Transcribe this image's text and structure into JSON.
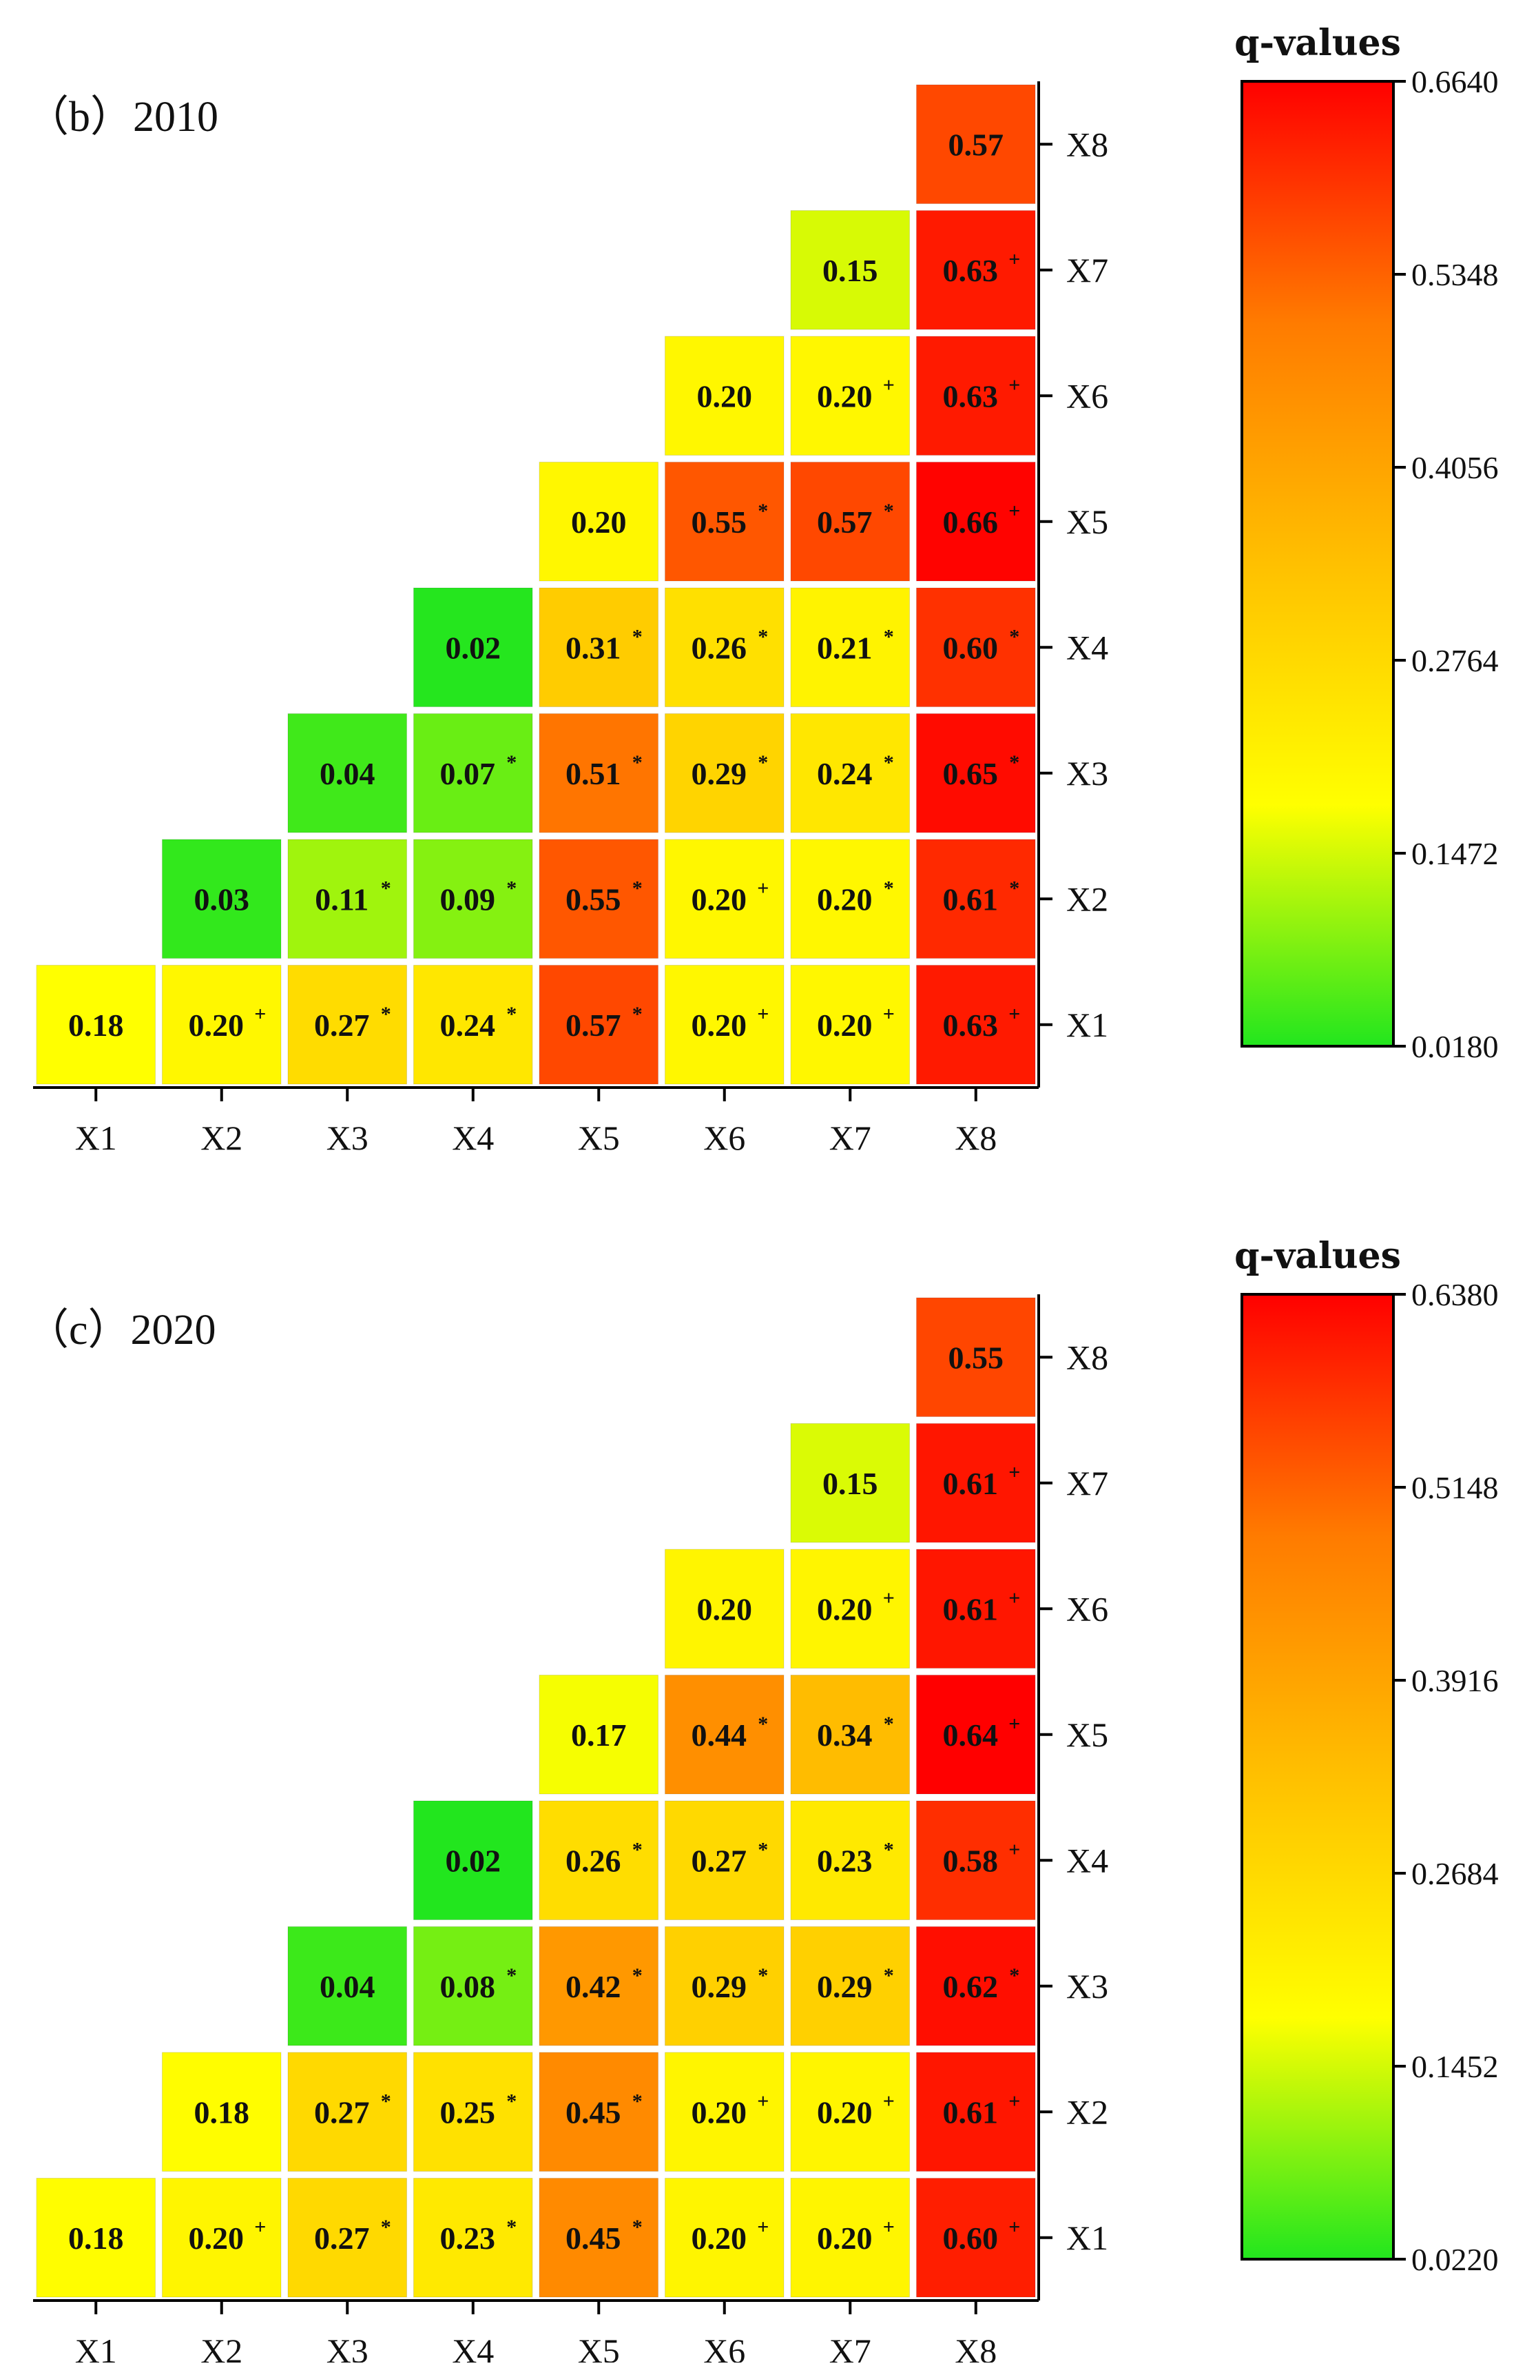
{
  "chart_data": [
    {
      "type": "heatmap",
      "title": "（b）2010",
      "panel_letter": "b",
      "year": "2010",
      "categories": [
        "X1",
        "X2",
        "X3",
        "X4",
        "X5",
        "X6",
        "X7",
        "X8"
      ],
      "colorbar": {
        "title": "q-values",
        "min": 0.018,
        "max": 0.664,
        "ticks": [
          "0.6640",
          "0.5348",
          "0.4056",
          "0.2764",
          "0.1472",
          "0.0180"
        ],
        "colors": [
          "#22e61e",
          "#ffff00",
          "#ffc000",
          "#ff7b00",
          "#ff0000"
        ]
      },
      "cells": [
        {
          "row": "X1",
          "col": "X1",
          "value": "0.18",
          "sym": ""
        },
        {
          "row": "X1",
          "col": "X2",
          "value": "0.20",
          "sym": "+"
        },
        {
          "row": "X1",
          "col": "X3",
          "value": "0.27",
          "sym": "*"
        },
        {
          "row": "X1",
          "col": "X4",
          "value": "0.24",
          "sym": "*"
        },
        {
          "row": "X1",
          "col": "X5",
          "value": "0.57",
          "sym": "*"
        },
        {
          "row": "X1",
          "col": "X6",
          "value": "0.20",
          "sym": "+"
        },
        {
          "row": "X1",
          "col": "X7",
          "value": "0.20",
          "sym": "+"
        },
        {
          "row": "X1",
          "col": "X8",
          "value": "0.63",
          "sym": "+"
        },
        {
          "row": "X2",
          "col": "X2",
          "value": "0.03",
          "sym": ""
        },
        {
          "row": "X2",
          "col": "X3",
          "value": "0.11",
          "sym": "*"
        },
        {
          "row": "X2",
          "col": "X4",
          "value": "0.09",
          "sym": "*"
        },
        {
          "row": "X2",
          "col": "X5",
          "value": "0.55",
          "sym": "*"
        },
        {
          "row": "X2",
          "col": "X6",
          "value": "0.20",
          "sym": "+"
        },
        {
          "row": "X2",
          "col": "X7",
          "value": "0.20",
          "sym": "*"
        },
        {
          "row": "X2",
          "col": "X8",
          "value": "0.61",
          "sym": "*"
        },
        {
          "row": "X3",
          "col": "X3",
          "value": "0.04",
          "sym": ""
        },
        {
          "row": "X3",
          "col": "X4",
          "value": "0.07",
          "sym": "*"
        },
        {
          "row": "X3",
          "col": "X5",
          "value": "0.51",
          "sym": "*"
        },
        {
          "row": "X3",
          "col": "X6",
          "value": "0.29",
          "sym": "*"
        },
        {
          "row": "X3",
          "col": "X7",
          "value": "0.24",
          "sym": "*"
        },
        {
          "row": "X3",
          "col": "X8",
          "value": "0.65",
          "sym": "*"
        },
        {
          "row": "X4",
          "col": "X4",
          "value": "0.02",
          "sym": ""
        },
        {
          "row": "X4",
          "col": "X5",
          "value": "0.31",
          "sym": "*"
        },
        {
          "row": "X4",
          "col": "X6",
          "value": "0.26",
          "sym": "*"
        },
        {
          "row": "X4",
          "col": "X7",
          "value": "0.21",
          "sym": "*"
        },
        {
          "row": "X4",
          "col": "X8",
          "value": "0.60",
          "sym": "*"
        },
        {
          "row": "X5",
          "col": "X5",
          "value": "0.20",
          "sym": ""
        },
        {
          "row": "X5",
          "col": "X6",
          "value": "0.55",
          "sym": "*"
        },
        {
          "row": "X5",
          "col": "X7",
          "value": "0.57",
          "sym": "*"
        },
        {
          "row": "X5",
          "col": "X8",
          "value": "0.66",
          "sym": "+"
        },
        {
          "row": "X6",
          "col": "X6",
          "value": "0.20",
          "sym": ""
        },
        {
          "row": "X6",
          "col": "X7",
          "value": "0.20",
          "sym": "+"
        },
        {
          "row": "X6",
          "col": "X8",
          "value": "0.63",
          "sym": "+"
        },
        {
          "row": "X7",
          "col": "X7",
          "value": "0.15",
          "sym": ""
        },
        {
          "row": "X7",
          "col": "X8",
          "value": "0.63",
          "sym": "+"
        },
        {
          "row": "X8",
          "col": "X8",
          "value": "0.57",
          "sym": ""
        }
      ]
    },
    {
      "type": "heatmap",
      "title": "（c）2020",
      "panel_letter": "c",
      "year": "2020",
      "categories": [
        "X1",
        "X2",
        "X3",
        "X4",
        "X5",
        "X6",
        "X7",
        "X8"
      ],
      "colorbar": {
        "title": "q-values",
        "min": 0.022,
        "max": 0.638,
        "ticks": [
          "0.6380",
          "0.5148",
          "0.3916",
          "0.2684",
          "0.1452",
          "0.0220"
        ],
        "colors": [
          "#22e61e",
          "#ffff00",
          "#ffc000",
          "#ff7b00",
          "#ff0000"
        ]
      },
      "cells": [
        {
          "row": "X1",
          "col": "X1",
          "value": "0.18",
          "sym": ""
        },
        {
          "row": "X1",
          "col": "X2",
          "value": "0.20",
          "sym": "+"
        },
        {
          "row": "X1",
          "col": "X3",
          "value": "0.27",
          "sym": "*"
        },
        {
          "row": "X1",
          "col": "X4",
          "value": "0.23",
          "sym": "*"
        },
        {
          "row": "X1",
          "col": "X5",
          "value": "0.45",
          "sym": "*"
        },
        {
          "row": "X1",
          "col": "X6",
          "value": "0.20",
          "sym": "+"
        },
        {
          "row": "X1",
          "col": "X7",
          "value": "0.20",
          "sym": "+"
        },
        {
          "row": "X1",
          "col": "X8",
          "value": "0.60",
          "sym": "+"
        },
        {
          "row": "X2",
          "col": "X2",
          "value": "0.18",
          "sym": ""
        },
        {
          "row": "X2",
          "col": "X3",
          "value": "0.27",
          "sym": "*"
        },
        {
          "row": "X2",
          "col": "X4",
          "value": "0.25",
          "sym": "*"
        },
        {
          "row": "X2",
          "col": "X5",
          "value": "0.45",
          "sym": "*"
        },
        {
          "row": "X2",
          "col": "X6",
          "value": "0.20",
          "sym": "+"
        },
        {
          "row": "X2",
          "col": "X7",
          "value": "0.20",
          "sym": "+"
        },
        {
          "row": "X2",
          "col": "X8",
          "value": "0.61",
          "sym": "+"
        },
        {
          "row": "X3",
          "col": "X3",
          "value": "0.04",
          "sym": ""
        },
        {
          "row": "X3",
          "col": "X4",
          "value": "0.08",
          "sym": "*"
        },
        {
          "row": "X3",
          "col": "X5",
          "value": "0.42",
          "sym": "*"
        },
        {
          "row": "X3",
          "col": "X6",
          "value": "0.29",
          "sym": "*"
        },
        {
          "row": "X3",
          "col": "X7",
          "value": "0.29",
          "sym": "*"
        },
        {
          "row": "X3",
          "col": "X8",
          "value": "0.62",
          "sym": "*"
        },
        {
          "row": "X4",
          "col": "X4",
          "value": "0.02",
          "sym": ""
        },
        {
          "row": "X4",
          "col": "X5",
          "value": "0.26",
          "sym": "*"
        },
        {
          "row": "X4",
          "col": "X6",
          "value": "0.27",
          "sym": "*"
        },
        {
          "row": "X4",
          "col": "X7",
          "value": "0.23",
          "sym": "*"
        },
        {
          "row": "X4",
          "col": "X8",
          "value": "0.58",
          "sym": "+"
        },
        {
          "row": "X5",
          "col": "X5",
          "value": "0.17",
          "sym": ""
        },
        {
          "row": "X5",
          "col": "X6",
          "value": "0.44",
          "sym": "*"
        },
        {
          "row": "X5",
          "col": "X7",
          "value": "0.34",
          "sym": "*"
        },
        {
          "row": "X5",
          "col": "X8",
          "value": "0.64",
          "sym": "+"
        },
        {
          "row": "X6",
          "col": "X6",
          "value": "0.20",
          "sym": ""
        },
        {
          "row": "X6",
          "col": "X7",
          "value": "0.20",
          "sym": "+"
        },
        {
          "row": "X6",
          "col": "X8",
          "value": "0.61",
          "sym": "+"
        },
        {
          "row": "X7",
          "col": "X7",
          "value": "0.15",
          "sym": ""
        },
        {
          "row": "X7",
          "col": "X8",
          "value": "0.61",
          "sym": "+"
        },
        {
          "row": "X8",
          "col": "X8",
          "value": "0.55",
          "sym": ""
        }
      ]
    }
  ]
}
